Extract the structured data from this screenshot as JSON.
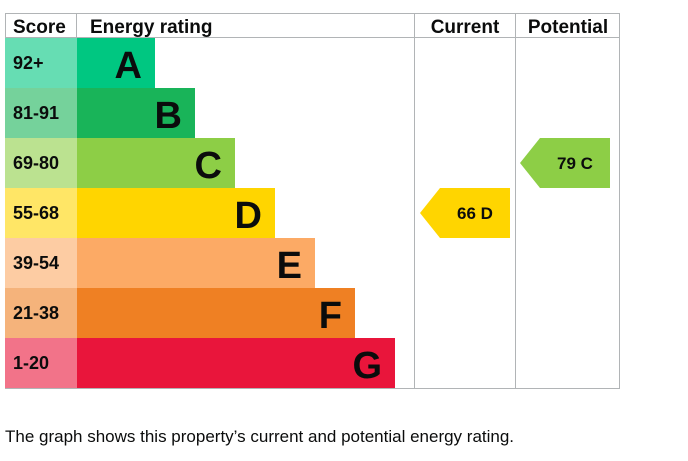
{
  "chart_data": {
    "type": "bar",
    "title": "",
    "headers": {
      "score": "Score",
      "rating": "Energy rating",
      "current": "Current",
      "potential": "Potential"
    },
    "bands": [
      {
        "score": "92+",
        "letter": "A",
        "color": "#00c781"
      },
      {
        "score": "81-91",
        "letter": "B",
        "color": "#19b459"
      },
      {
        "score": "69-80",
        "letter": "C",
        "color": "#8dce46"
      },
      {
        "score": "55-68",
        "letter": "D",
        "color": "#ffd500"
      },
      {
        "score": "39-54",
        "letter": "E",
        "color": "#fcaa65"
      },
      {
        "score": "21-38",
        "letter": "F",
        "color": "#ef8023"
      },
      {
        "score": "1-20",
        "letter": "G",
        "color": "#e9153b"
      }
    ],
    "current": {
      "value": 66,
      "letter": "D",
      "label": "66  D",
      "color": "#ffd500"
    },
    "potential": {
      "value": 79,
      "letter": "C",
      "label": "79  C",
      "color": "#8dce46"
    }
  },
  "caption": "The graph shows this property’s current and potential energy rating."
}
